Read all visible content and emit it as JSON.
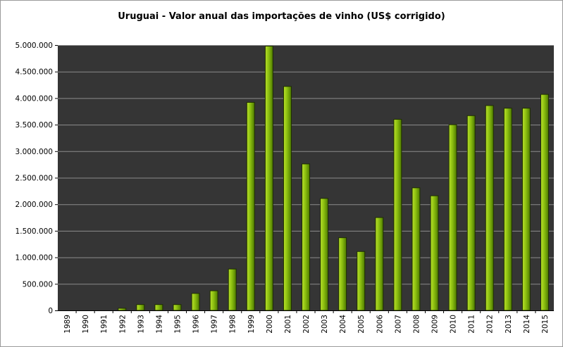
{
  "chart_data": {
    "type": "bar",
    "title": "Uruguai - Valor anual das importações de vinho (US$ corrigido)",
    "xlabel": "",
    "ylabel": "",
    "categories": [
      "1989",
      "1990",
      "1991",
      "1992",
      "1993",
      "1994",
      "1995",
      "1996",
      "1997",
      "1998",
      "1999",
      "2000",
      "2001",
      "2002",
      "2003",
      "2004",
      "2005",
      "2006",
      "2007",
      "2008",
      "2009",
      "2010",
      "2011",
      "2012",
      "2013",
      "2014",
      "2015"
    ],
    "values": [
      0,
      0,
      0,
      40000,
      110000,
      110000,
      110000,
      320000,
      370000,
      780000,
      3920000,
      4980000,
      4220000,
      2760000,
      2110000,
      1370000,
      1110000,
      1750000,
      3600000,
      2310000,
      2160000,
      3500000,
      3670000,
      3860000,
      3810000,
      3810000,
      4070000
    ],
    "ylim": [
      0,
      5000000
    ],
    "yticks": [
      0,
      500000,
      1000000,
      1500000,
      2000000,
      2500000,
      3000000,
      3500000,
      4000000,
      4500000,
      5000000
    ],
    "ytick_labels": [
      "0",
      "500.000",
      "1.000.000",
      "1.500.000",
      "2.000.000",
      "2.500.000",
      "3.000.000",
      "3.500.000",
      "4.000.000",
      "4.500.000",
      "5.000.000"
    ],
    "grid": true,
    "legend": "none",
    "colors": {
      "plot_background": "#353535",
      "gridline": "#8c8c8c",
      "bar_light": "#b8e02a",
      "bar_mid": "#8cbf10",
      "bar_dark": "#4d7a00",
      "bar_outline": "#1e2e00"
    }
  }
}
